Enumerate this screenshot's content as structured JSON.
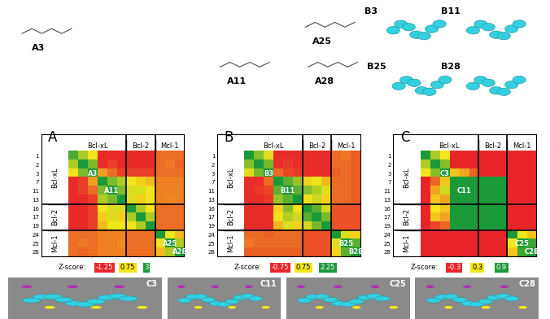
{
  "structures": {
    "labels": [
      "A3",
      "A11",
      "A25",
      "A28"
    ]
  },
  "models": {
    "labels": [
      "B3",
      "B11",
      "B25",
      "B28"
    ]
  },
  "surfaces": {
    "labels": [
      "C3",
      "C11",
      "C25",
      "C28"
    ]
  },
  "chart_data": [
    {
      "type": "heatmap",
      "panel": "A",
      "tick_labels": "y",
      "rows": [
        "1",
        "2",
        "3",
        "7",
        "11",
        "13",
        "16",
        "17",
        "19",
        "24",
        "25",
        "28"
      ],
      "groups": [
        {
          "name": "Bcl-xL",
          "members": [
            "1",
            "2",
            "3",
            "7",
            "11",
            "13"
          ]
        },
        {
          "name": "Bcl-2",
          "members": [
            "16",
            "17",
            "19"
          ]
        },
        {
          "name": "Mcl-1",
          "members": [
            "24",
            "25",
            "28"
          ]
        }
      ],
      "cells": [
        [
          2.5,
          1.5,
          0.8,
          -1.2,
          -1.2,
          -1.2,
          -1.2,
          -1.2,
          -1.2,
          -0.5,
          -0.5,
          -0.5
        ],
        [
          1.5,
          3,
          2.0,
          -1.2,
          -1.0,
          -1.2,
          -1.2,
          -1.2,
          -1.2,
          -0.5,
          -0.4,
          -0.6
        ],
        [
          0.8,
          2.0,
          3,
          0.0,
          -0.5,
          -1.0,
          -1.0,
          -1.0,
          -1.0,
          -0.5,
          -0.5,
          -0.5
        ],
        [
          -1.2,
          -1.0,
          0.0,
          3,
          2.0,
          1.5,
          0.8,
          0.5,
          0.3,
          -0.3,
          -0.3,
          -0.3
        ],
        [
          -1.2,
          -1.0,
          -0.5,
          2.0,
          3,
          2.0,
          1.0,
          1.0,
          0.8,
          -0.3,
          -0.3,
          -0.3
        ],
        [
          -1.2,
          -1.2,
          -1.0,
          1.5,
          2.0,
          3,
          1.0,
          0.5,
          0.8,
          -0.3,
          -0.2,
          -0.3
        ],
        [
          -1.2,
          -1.2,
          -1.0,
          0.8,
          1.0,
          1.0,
          3,
          1.5,
          0.8,
          -0.5,
          -0.5,
          -0.5
        ],
        [
          -1.2,
          -1.2,
          -1.0,
          0.5,
          1.0,
          0.5,
          1.5,
          3,
          1.5,
          -0.5,
          -0.5,
          -0.5
        ],
        [
          -1.2,
          -1.2,
          -1.0,
          0.3,
          0.8,
          0.8,
          0.8,
          1.5,
          3,
          -0.5,
          -0.5,
          -0.5
        ],
        [
          -0.5,
          -0.5,
          -0.5,
          -0.3,
          -0.3,
          -0.3,
          -0.5,
          -0.5,
          -0.5,
          3,
          0.8,
          0.3
        ],
        [
          -0.5,
          -0.4,
          -0.5,
          -0.3,
          -0.3,
          -0.2,
          -0.5,
          -0.5,
          -0.5,
          0.8,
          3,
          1.5
        ],
        [
          -0.5,
          -0.6,
          -0.5,
          -0.3,
          -0.3,
          -0.3,
          -0.5,
          -0.5,
          -0.5,
          0.3,
          1.5,
          3
        ]
      ],
      "cell_labels": [
        {
          "text": "A3",
          "row": "3",
          "col": "3"
        },
        {
          "text": "A11",
          "row": "11",
          "col": "11"
        },
        {
          "text": "A25",
          "row": "25",
          "col": "25"
        },
        {
          "text": "A28",
          "row": "28",
          "col": "28"
        }
      ],
      "colorbar": {
        "label": "Z-score:",
        "ticks": [
          -1.25,
          0.75,
          3
        ],
        "colors": [
          "#e8262a",
          "#f5e61b",
          "#1b9a3a"
        ]
      }
    },
    {
      "type": "heatmap",
      "panel": "B",
      "tick_labels": "y",
      "rows": [
        "1",
        "2",
        "3",
        "7",
        "11",
        "13",
        "16",
        "17",
        "19",
        "24",
        "25",
        "28"
      ],
      "groups": [
        {
          "name": "Bcl-xL",
          "members": [
            "1",
            "2",
            "3",
            "7",
            "11",
            "13"
          ]
        },
        {
          "name": "Bcl-2",
          "members": [
            "16",
            "17",
            "19"
          ]
        },
        {
          "name": "Mcl-1",
          "members": [
            "24",
            "25",
            "28"
          ]
        }
      ],
      "cells": [
        [
          2.25,
          1.5,
          0.9,
          -0.7,
          -0.7,
          -0.7,
          -0.7,
          -0.7,
          -0.7,
          -0.2,
          -0.1,
          -0.3
        ],
        [
          1.5,
          2.25,
          1.6,
          -0.7,
          -0.6,
          -0.7,
          -0.7,
          -0.7,
          -0.7,
          -0.2,
          -0.2,
          -0.3
        ],
        [
          0.9,
          1.6,
          2.25,
          -0.2,
          -0.5,
          -0.6,
          -0.7,
          -0.7,
          -0.7,
          -0.3,
          -0.2,
          -0.3
        ],
        [
          -0.7,
          -0.7,
          -0.2,
          2.25,
          1.8,
          1.4,
          0.6,
          0.8,
          0.4,
          -0.2,
          -0.2,
          -0.3
        ],
        [
          -0.7,
          -0.6,
          -0.5,
          1.8,
          2.25,
          1.8,
          1.5,
          1.2,
          0.9,
          -0.2,
          -0.2,
          -0.3
        ],
        [
          -0.7,
          -0.7,
          -0.6,
          1.4,
          1.8,
          2.25,
          0.8,
          1.0,
          0.6,
          -0.2,
          -0.2,
          -0.3
        ],
        [
          -0.7,
          -0.7,
          -0.7,
          0.6,
          1.5,
          0.8,
          2.25,
          1.8,
          1.0,
          -0.4,
          -0.4,
          -0.4
        ],
        [
          -0.7,
          -0.7,
          -0.7,
          0.8,
          1.2,
          1.0,
          1.8,
          2.25,
          1.6,
          -0.4,
          -0.4,
          -0.4
        ],
        [
          -0.7,
          -0.7,
          -0.7,
          0.4,
          0.9,
          0.6,
          1.0,
          1.6,
          2.25,
          -0.4,
          -0.4,
          -0.4
        ],
        [
          -0.2,
          -0.2,
          -0.3,
          -0.2,
          -0.2,
          -0.2,
          -0.4,
          -0.4,
          -0.4,
          2.25,
          0.9,
          0.6
        ],
        [
          -0.1,
          -0.2,
          -0.2,
          -0.2,
          -0.2,
          -0.2,
          -0.4,
          -0.4,
          -0.4,
          0.9,
          2.25,
          1.8
        ],
        [
          -0.3,
          -0.3,
          -0.3,
          -0.3,
          -0.3,
          -0.3,
          -0.4,
          -0.4,
          -0.4,
          0.6,
          1.8,
          2.25
        ]
      ],
      "cell_labels": [
        {
          "text": "B3",
          "row": "3",
          "col": "3"
        },
        {
          "text": "B11",
          "row": "11",
          "col": "11"
        },
        {
          "text": "B25",
          "row": "25",
          "col": "25"
        },
        {
          "text": "B28",
          "row": "28",
          "col": "28"
        }
      ],
      "colorbar": {
        "label": "Z-score:",
        "ticks": [
          -0.75,
          0.75,
          2.25
        ],
        "colors": [
          "#e8262a",
          "#f5e61b",
          "#1b9a3a"
        ]
      }
    },
    {
      "type": "heatmap",
      "panel": "C",
      "tick_labels": "y",
      "rows": [
        "1",
        "2",
        "3",
        "7",
        "11",
        "13",
        "16",
        "17",
        "19",
        "24",
        "25",
        "28"
      ],
      "groups": [
        {
          "name": "Bcl-xL",
          "members": [
            "1",
            "2",
            "3",
            "7",
            "11",
            "13"
          ]
        },
        {
          "name": "Bcl-2",
          "members": [
            "16",
            "17",
            "19"
          ]
        },
        {
          "name": "Mcl-1",
          "members": [
            "24",
            "25",
            "28"
          ]
        }
      ],
      "cells": [
        [
          0.9,
          0.5,
          0.3,
          -0.3,
          -0.3,
          -0.3,
          -0.3,
          -0.3,
          -0.3,
          -0.3,
          -0.3,
          -0.3
        ],
        [
          0.5,
          0.9,
          0.6,
          -0.3,
          -0.3,
          -0.3,
          -0.3,
          -0.3,
          -0.3,
          -0.3,
          -0.3,
          -0.3
        ],
        [
          0.3,
          0.6,
          0.9,
          0.2,
          0.1,
          -0.1,
          -0.3,
          -0.3,
          -0.3,
          -0.3,
          -0.3,
          -0.3
        ],
        [
          -0.3,
          -0.1,
          0.2,
          0.9,
          0.9,
          0.9,
          0.9,
          0.9,
          0.9,
          -0.3,
          -0.3,
          -0.3
        ],
        [
          -0.3,
          0.1,
          0.4,
          0.9,
          0.9,
          0.9,
          0.9,
          0.9,
          0.9,
          -0.3,
          -0.3,
          -0.3
        ],
        [
          -0.3,
          0.2,
          0.1,
          0.9,
          0.9,
          0.9,
          0.9,
          0.9,
          0.9,
          -0.3,
          -0.3,
          -0.3
        ],
        [
          -0.3,
          0.3,
          0.2,
          0.9,
          0.9,
          0.9,
          0.9,
          0.9,
          0.9,
          -0.3,
          -0.3,
          -0.3
        ],
        [
          -0.3,
          0.2,
          0.1,
          0.9,
          0.9,
          0.9,
          0.9,
          0.9,
          0.9,
          -0.3,
          -0.3,
          -0.3
        ],
        [
          -0.3,
          -0.2,
          -0.1,
          0.9,
          0.9,
          0.9,
          0.9,
          0.9,
          0.9,
          -0.3,
          -0.3,
          -0.3
        ],
        [
          -0.3,
          -0.3,
          -0.3,
          -0.3,
          -0.3,
          -0.3,
          -0.3,
          -0.3,
          -0.3,
          0.9,
          0.3,
          0.2
        ],
        [
          -0.3,
          -0.3,
          -0.3,
          -0.3,
          -0.3,
          -0.3,
          -0.3,
          -0.3,
          -0.3,
          0.3,
          0.9,
          0.8
        ],
        [
          -0.3,
          -0.3,
          -0.3,
          -0.3,
          -0.3,
          -0.3,
          -0.3,
          -0.3,
          -0.3,
          0.2,
          0.8,
          0.9
        ]
      ],
      "cell_labels": [
        {
          "text": "C3",
          "row": "3",
          "col": "3"
        },
        {
          "text": "C11",
          "row": "11",
          "col": "11"
        },
        {
          "text": "C25",
          "row": "25",
          "col": "25"
        },
        {
          "text": "C28",
          "row": "28",
          "col": "28"
        }
      ],
      "colorbar": {
        "label": "Z-score:",
        "ticks": [
          -0.3,
          0.3,
          0.9
        ],
        "colors": [
          "#e8262a",
          "#f5e61b",
          "#1b9a3a"
        ]
      }
    }
  ]
}
